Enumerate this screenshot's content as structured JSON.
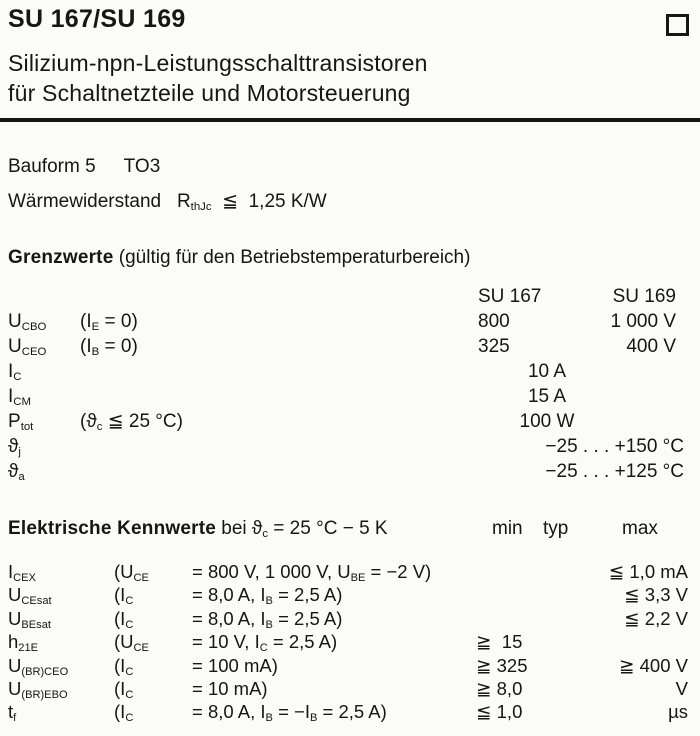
{
  "colors": {
    "ink": "#161616",
    "paper": "#fbfbfa"
  },
  "header": {
    "title": "SU 167/SU 169",
    "subtitle1": "Silizium-npn-Leistungsschalttransistoren",
    "subtitle2": "für Schaltnetzteile und Motorsteuerung",
    "corner_square_icon": "print-registration-square"
  },
  "info": {
    "bauform_label": "Bauform 5",
    "bauform_value": "TO3",
    "thermal": [
      [
        "Wärmewiderstand   R",
        "n"
      ],
      [
        "thJc",
        "s"
      ],
      [
        "  ≦  1,25 K/W",
        "n"
      ]
    ]
  },
  "limits": {
    "heading_bold": "Grenzwerte",
    "heading_rest": " (gültig für den Betriebstemperaturbereich)",
    "col_su167": "SU 167",
    "col_su169": "SU 169",
    "rows": [
      {
        "label": [
          [
            "U",
            "n"
          ],
          [
            "CBO",
            "s"
          ]
        ],
        "cond": [
          [
            "(I",
            "n"
          ],
          [
            "E",
            "s"
          ],
          [
            " = 0)",
            "n"
          ]
        ],
        "v1": "800",
        "v2": "1 000 V"
      },
      {
        "label": [
          [
            "U",
            "n"
          ],
          [
            "CEO",
            "s"
          ]
        ],
        "cond": [
          [
            "(I",
            "n"
          ],
          [
            "B",
            "s"
          ],
          [
            " = 0)",
            "n"
          ]
        ],
        "v1": "325",
        "v2": "400 V"
      },
      {
        "label": [
          [
            "I",
            "n"
          ],
          [
            "C",
            "s"
          ]
        ],
        "vc": "10 A"
      },
      {
        "label": [
          [
            "I",
            "n"
          ],
          [
            "CM",
            "s"
          ]
        ],
        "vc": "15 A"
      },
      {
        "label": [
          [
            "P",
            "n"
          ],
          [
            "tot",
            "s"
          ]
        ],
        "cond": [
          [
            "(ϑ",
            "n"
          ],
          [
            "c",
            "s"
          ],
          [
            " ≦ 25 °C)",
            "n"
          ]
        ],
        "vc": "100 W"
      },
      {
        "label": [
          [
            "ϑ",
            "n"
          ],
          [
            "j",
            "s"
          ]
        ],
        "vr": "−25 . . . +150 °C"
      },
      {
        "label": [
          [
            "ϑ",
            "n"
          ],
          [
            "a",
            "s"
          ]
        ],
        "vr": "−25 . . . +125 °C"
      }
    ]
  },
  "electrical": {
    "heading_bold": "Elektrische Kennwerte",
    "heading_rest": [
      [
        " bei ϑ",
        "n"
      ],
      [
        "c",
        "s"
      ],
      [
        " = 25 °C − 5 K",
        "n"
      ]
    ],
    "col_min": "min",
    "col_typ": "typ",
    "col_max": "max",
    "rows": [
      {
        "label": [
          [
            "I",
            "n"
          ],
          [
            "CEX",
            "s"
          ]
        ],
        "condA": [
          [
            "(U",
            "n"
          ],
          [
            "CE",
            "s"
          ]
        ],
        "condB": [
          [
            "= 800 V, 1 000 V, U",
            "n"
          ],
          [
            "BE",
            "s"
          ],
          [
            " = −2 V)",
            "n"
          ]
        ],
        "min": "",
        "max": "≦ 1,0 mA"
      },
      {
        "label": [
          [
            "U",
            "n"
          ],
          [
            "CEsat",
            "s"
          ]
        ],
        "condA": [
          [
            "(I",
            "n"
          ],
          [
            "C",
            "s"
          ]
        ],
        "condB": [
          [
            "= 8,0 A, I",
            "n"
          ],
          [
            "B",
            "s"
          ],
          [
            " = 2,5 A)",
            "n"
          ]
        ],
        "min": "",
        "max": "≦ 3,3 V"
      },
      {
        "label": [
          [
            "U",
            "n"
          ],
          [
            "BEsat",
            "s"
          ]
        ],
        "condA": [
          [
            "(I",
            "n"
          ],
          [
            "C",
            "s"
          ]
        ],
        "condB": [
          [
            "= 8,0 A, I",
            "n"
          ],
          [
            "B",
            "s"
          ],
          [
            " = 2,5 A)",
            "n"
          ]
        ],
        "min": "",
        "max": "≦ 2,2 V"
      },
      {
        "label": [
          [
            "h",
            "n"
          ],
          [
            "21E",
            "s"
          ]
        ],
        "condA": [
          [
            "(U",
            "n"
          ],
          [
            "CE",
            "s"
          ]
        ],
        "condB": [
          [
            "= 10 V, I",
            "n"
          ],
          [
            "C",
            "s"
          ],
          [
            " = 2,5 A)",
            "n"
          ]
        ],
        "min": "≧  15",
        "max": ""
      },
      {
        "label": [
          [
            "U",
            "n"
          ],
          [
            "(BR)CEO",
            "s"
          ]
        ],
        "condA": [
          [
            "(I",
            "n"
          ],
          [
            "C",
            "s"
          ]
        ],
        "condB": [
          [
            "= 100 mA)",
            "n"
          ]
        ],
        "min": "≧ 325",
        "max": "≧ 400 V"
      },
      {
        "label": [
          [
            "U",
            "n"
          ],
          [
            "(BR)EBO",
            "s"
          ]
        ],
        "condA": [
          [
            "(I",
            "n"
          ],
          [
            "C",
            "s"
          ]
        ],
        "condB": [
          [
            "= 10 mA)",
            "n"
          ]
        ],
        "min": "≧ 8,0",
        "max": "V"
      },
      {
        "label": [
          [
            "t",
            "n"
          ],
          [
            "f",
            "s"
          ]
        ],
        "condA": [
          [
            "(I",
            "n"
          ],
          [
            "C",
            "s"
          ]
        ],
        "condB": [
          [
            "= 8,0 A, I",
            "n"
          ],
          [
            "B",
            "s"
          ],
          [
            " = −I",
            "n"
          ],
          [
            "B",
            "s"
          ],
          [
            " = 2,5 A)",
            "n"
          ]
        ],
        "min": "≦ 1,0",
        "max": "µs"
      }
    ]
  }
}
